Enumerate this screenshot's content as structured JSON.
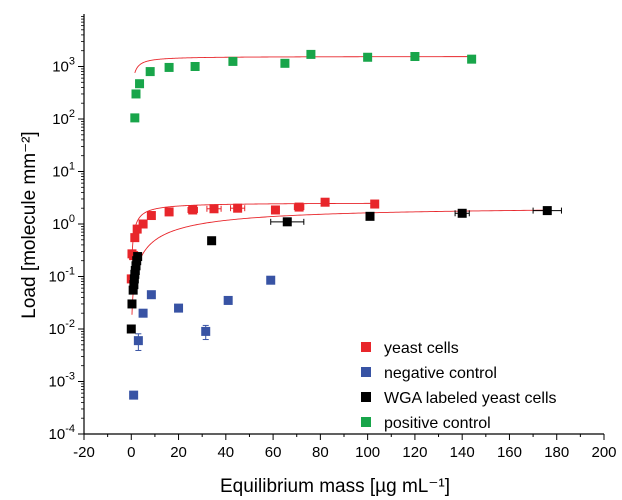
{
  "chart_data": {
    "type": "scatter",
    "xlabel": "Equilibrium mass [µg mL⁻¹]",
    "ylabel": "Load [molecule mm⁻²]",
    "xlim": [
      -20,
      200
    ],
    "ylim": [
      0.0001,
      10000
    ],
    "yscale": "log",
    "x_ticks": [
      -20,
      0,
      20,
      40,
      60,
      80,
      100,
      120,
      140,
      160,
      180,
      200
    ],
    "y_ticks": [
      {
        "value": 0.0001,
        "base": "10",
        "exp": "-4"
      },
      {
        "value": 0.001,
        "base": "10",
        "exp": "-3"
      },
      {
        "value": 0.01,
        "base": "10",
        "exp": "-2"
      },
      {
        "value": 0.1,
        "base": "10",
        "exp": "-1"
      },
      {
        "value": 1,
        "base": "10",
        "exp": "0"
      },
      {
        "value": 10,
        "base": "10",
        "exp": "1"
      },
      {
        "value": 100,
        "base": "10",
        "exp": "2"
      },
      {
        "value": 1000,
        "base": "10",
        "exp": "3"
      }
    ],
    "legend_position": "bottom-right",
    "series": [
      {
        "name": "yeast cells",
        "color": "#e8262b",
        "points": [
          [
            0,
            0.09
          ],
          [
            0.3,
            0.27
          ],
          [
            1,
            0.25
          ],
          [
            1.5,
            0.55
          ],
          [
            2.5,
            0.8
          ],
          [
            5,
            1.0
          ],
          [
            8.5,
            1.45
          ],
          [
            16,
            1.7
          ],
          [
            26,
            1.85
          ],
          [
            35,
            1.95
          ],
          [
            45,
            2.0
          ],
          [
            61,
            1.85
          ],
          [
            71,
            2.1
          ],
          [
            82,
            2.6
          ],
          [
            103,
            2.4
          ]
        ],
        "x_errors": [
          0,
          0,
          0,
          0,
          0,
          0,
          0,
          0,
          2,
          3,
          3,
          0,
          2,
          0,
          0
        ],
        "fit": {
          "qmax": 2.55,
          "K": 3.2
        }
      },
      {
        "name": "negative control",
        "color": "#3853a4",
        "points": [
          [
            1,
            0.00055
          ],
          [
            3,
            0.006
          ],
          [
            5,
            0.02
          ],
          [
            8.5,
            0.045
          ],
          [
            20,
            0.025
          ],
          [
            31.5,
            0.009
          ],
          [
            41,
            0.035
          ],
          [
            59,
            0.085
          ]
        ],
        "y_errors": [
          0.1,
          0.35,
          0,
          0,
          0,
          0.3,
          0,
          0
        ]
      },
      {
        "name": "WGA labeled yeast cells",
        "color": "#000000",
        "points": [
          [
            0,
            0.01
          ],
          [
            0.3,
            0.03
          ],
          [
            0.8,
            0.055
          ],
          [
            1.1,
            0.07
          ],
          [
            1.3,
            0.09
          ],
          [
            1.5,
            0.11
          ],
          [
            1.7,
            0.13
          ],
          [
            2.0,
            0.16
          ],
          [
            2.3,
            0.2
          ],
          [
            2.7,
            0.24
          ],
          [
            34,
            0.48
          ],
          [
            66,
            1.1
          ],
          [
            101,
            1.4
          ],
          [
            140,
            1.6
          ],
          [
            176,
            1.8
          ]
        ],
        "x_errors": [
          0,
          0,
          0,
          0,
          0,
          0,
          0,
          0,
          0,
          0,
          0,
          7,
          0,
          3,
          6
        ],
        "fit": {
          "qmax": 2.2,
          "K": 35
        }
      },
      {
        "name": "positive control",
        "color": "#18a54a",
        "points": [
          [
            1.5,
            105
          ],
          [
            2,
            300
          ],
          [
            3.5,
            470
          ],
          [
            8,
            800
          ],
          [
            16,
            960
          ],
          [
            27,
            1000
          ],
          [
            43,
            1250
          ],
          [
            65,
            1150
          ],
          [
            76,
            1700
          ],
          [
            100,
            1500
          ],
          [
            120,
            1550
          ],
          [
            144,
            1380
          ]
        ],
        "fit": {
          "qmax": 1560,
          "K": 1.6
        }
      }
    ]
  }
}
